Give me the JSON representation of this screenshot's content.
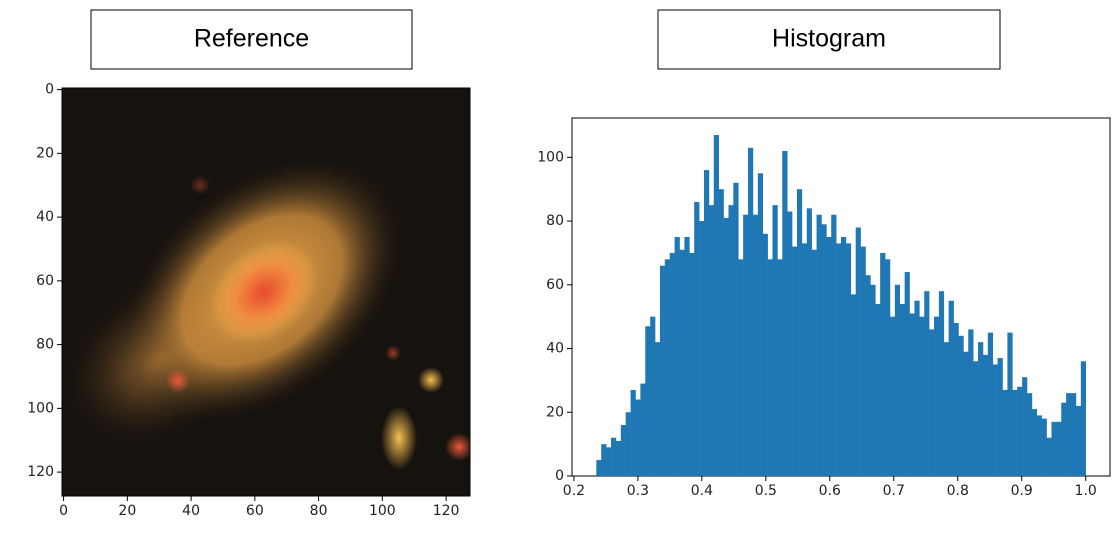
{
  "chart_data": [
    {
      "type": "image",
      "title": "Reference",
      "xlim": [
        -0.5,
        127.5
      ],
      "ylim": [
        -0.5,
        127.5
      ],
      "y_inverted": true,
      "xticks": [
        0,
        20,
        40,
        60,
        80,
        100,
        120
      ],
      "yticks": [
        0,
        20,
        40,
        60,
        80,
        100,
        120
      ]
    },
    {
      "type": "histogram",
      "title": "Histogram",
      "color": "#1f77b4",
      "xlim": [
        0.197,
        1.038
      ],
      "ylim": [
        0,
        112.35
      ],
      "xticks": [
        0.2,
        0.3,
        0.4,
        0.5,
        0.6,
        0.7,
        0.8,
        0.9,
        {
          "value": 1,
          "label": "1.0"
        }
      ],
      "yticks": [
        0,
        20,
        40,
        60,
        80,
        100
      ],
      "bins": [
        0.235,
        0.2427,
        0.2503,
        0.258,
        0.2656,
        0.2733,
        0.2809,
        0.2886,
        0.2962,
        0.3039,
        0.3115,
        0.3192,
        0.3268,
        0.3345,
        0.3421,
        0.3498,
        0.3574,
        0.3651,
        0.3727,
        0.3804,
        0.388,
        0.3957,
        0.4033,
        0.411,
        0.4186,
        0.4263,
        0.4339,
        0.4416,
        0.4492,
        0.4569,
        0.4645,
        0.4722,
        0.4798,
        0.4875,
        0.4951,
        0.5028,
        0.5104,
        0.5181,
        0.5257,
        0.5334,
        0.541,
        0.5487,
        0.5563,
        0.564,
        0.5716,
        0.5793,
        0.5869,
        0.5946,
        0.6022,
        0.6099,
        0.6175,
        0.6252,
        0.6328,
        0.6405,
        0.6481,
        0.6558,
        0.6634,
        0.6711,
        0.6787,
        0.6864,
        0.694,
        0.7017,
        0.7093,
        0.717,
        0.7246,
        0.7323,
        0.7399,
        0.7476,
        0.7552,
        0.7629,
        0.7705,
        0.7782,
        0.7858,
        0.7935,
        0.8011,
        0.8088,
        0.8164,
        0.8241,
        0.8317,
        0.8394,
        0.847,
        0.8547,
        0.8623,
        0.87,
        0.8776,
        0.8853,
        0.8929,
        0.9006,
        0.9082,
        0.9159,
        0.9235,
        0.9312,
        0.9388,
        0.9465,
        0.9541,
        0.9618,
        0.9694,
        0.9771,
        0.9847,
        0.9924,
        1.0
      ],
      "values": [
        5,
        10,
        9,
        12,
        11,
        16,
        20,
        27,
        24,
        29,
        47,
        50,
        42,
        66,
        68,
        70,
        75,
        71,
        75,
        70,
        86,
        80,
        96,
        85,
        107,
        90,
        81,
        85,
        92,
        68,
        82,
        103,
        82,
        95,
        76,
        68,
        85,
        68,
        102,
        83,
        72,
        90,
        73,
        84,
        71,
        82,
        79,
        75,
        82,
        73,
        75,
        73,
        57,
        78,
        72,
        63,
        60,
        54,
        70,
        68,
        50,
        60,
        54,
        64,
        51,
        55,
        50,
        58,
        46,
        50,
        58,
        42,
        55,
        48,
        44,
        39,
        46,
        36,
        42,
        38,
        45,
        35,
        37,
        27,
        45,
        27,
        28,
        31,
        26,
        21,
        19,
        18,
        12,
        17,
        17,
        23,
        26,
        26,
        22,
        36
      ]
    }
  ]
}
